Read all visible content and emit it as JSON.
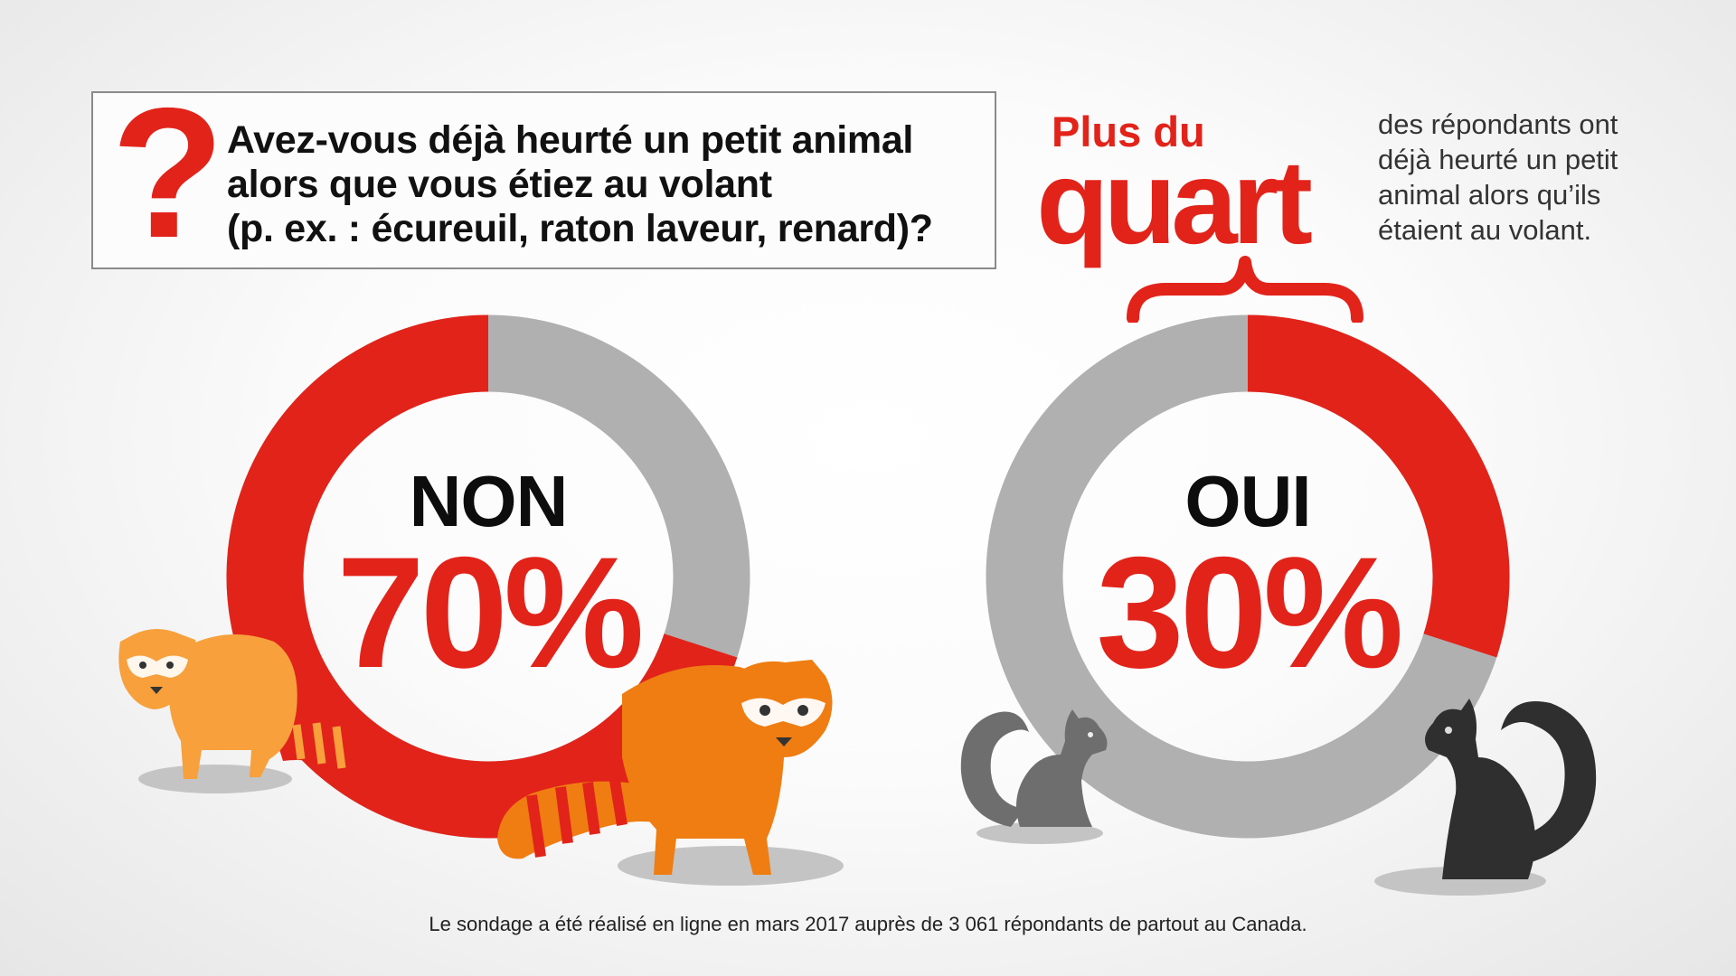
{
  "question": {
    "mark": "?",
    "lines": [
      "Avez-vous déjà heurté un petit animal",
      "alors que vous étiez au volant",
      "(p. ex. : écureuil, raton laveur, renard)?"
    ]
  },
  "callout": {
    "lead": "Plus du",
    "big": "quart",
    "description_lines": [
      "des répondants ont",
      "déjà heurté un petit",
      "animal alors qu’ils",
      "étaient au volant."
    ]
  },
  "footnote": "Le sondage a été réalisé en ligne en mars 2017 auprès de 3 061 répondants de partout au Canada.",
  "colors": {
    "accent": "#e2231a",
    "track": "#b0b0b0",
    "raccoon_light": "#f7a03c",
    "raccoon_dark": "#ef7d12",
    "squirrel_light": "#6e6e6e",
    "squirrel_dark": "#2f2f2f"
  },
  "icons": [
    "raccoon-icon",
    "squirrel-icon",
    "question-mark-icon",
    "curly-brace-icon"
  ],
  "chart_data": [
    {
      "type": "pie",
      "variant": "donut",
      "label": "NON",
      "display_value": "70%",
      "highlight_percent": 70,
      "categories": [
        "NON",
        "OUI"
      ],
      "values": [
        70,
        30
      ]
    },
    {
      "type": "pie",
      "variant": "donut",
      "label": "OUI",
      "display_value": "30%",
      "highlight_percent": 30,
      "categories": [
        "OUI",
        "NON"
      ],
      "values": [
        30,
        70
      ]
    }
  ]
}
